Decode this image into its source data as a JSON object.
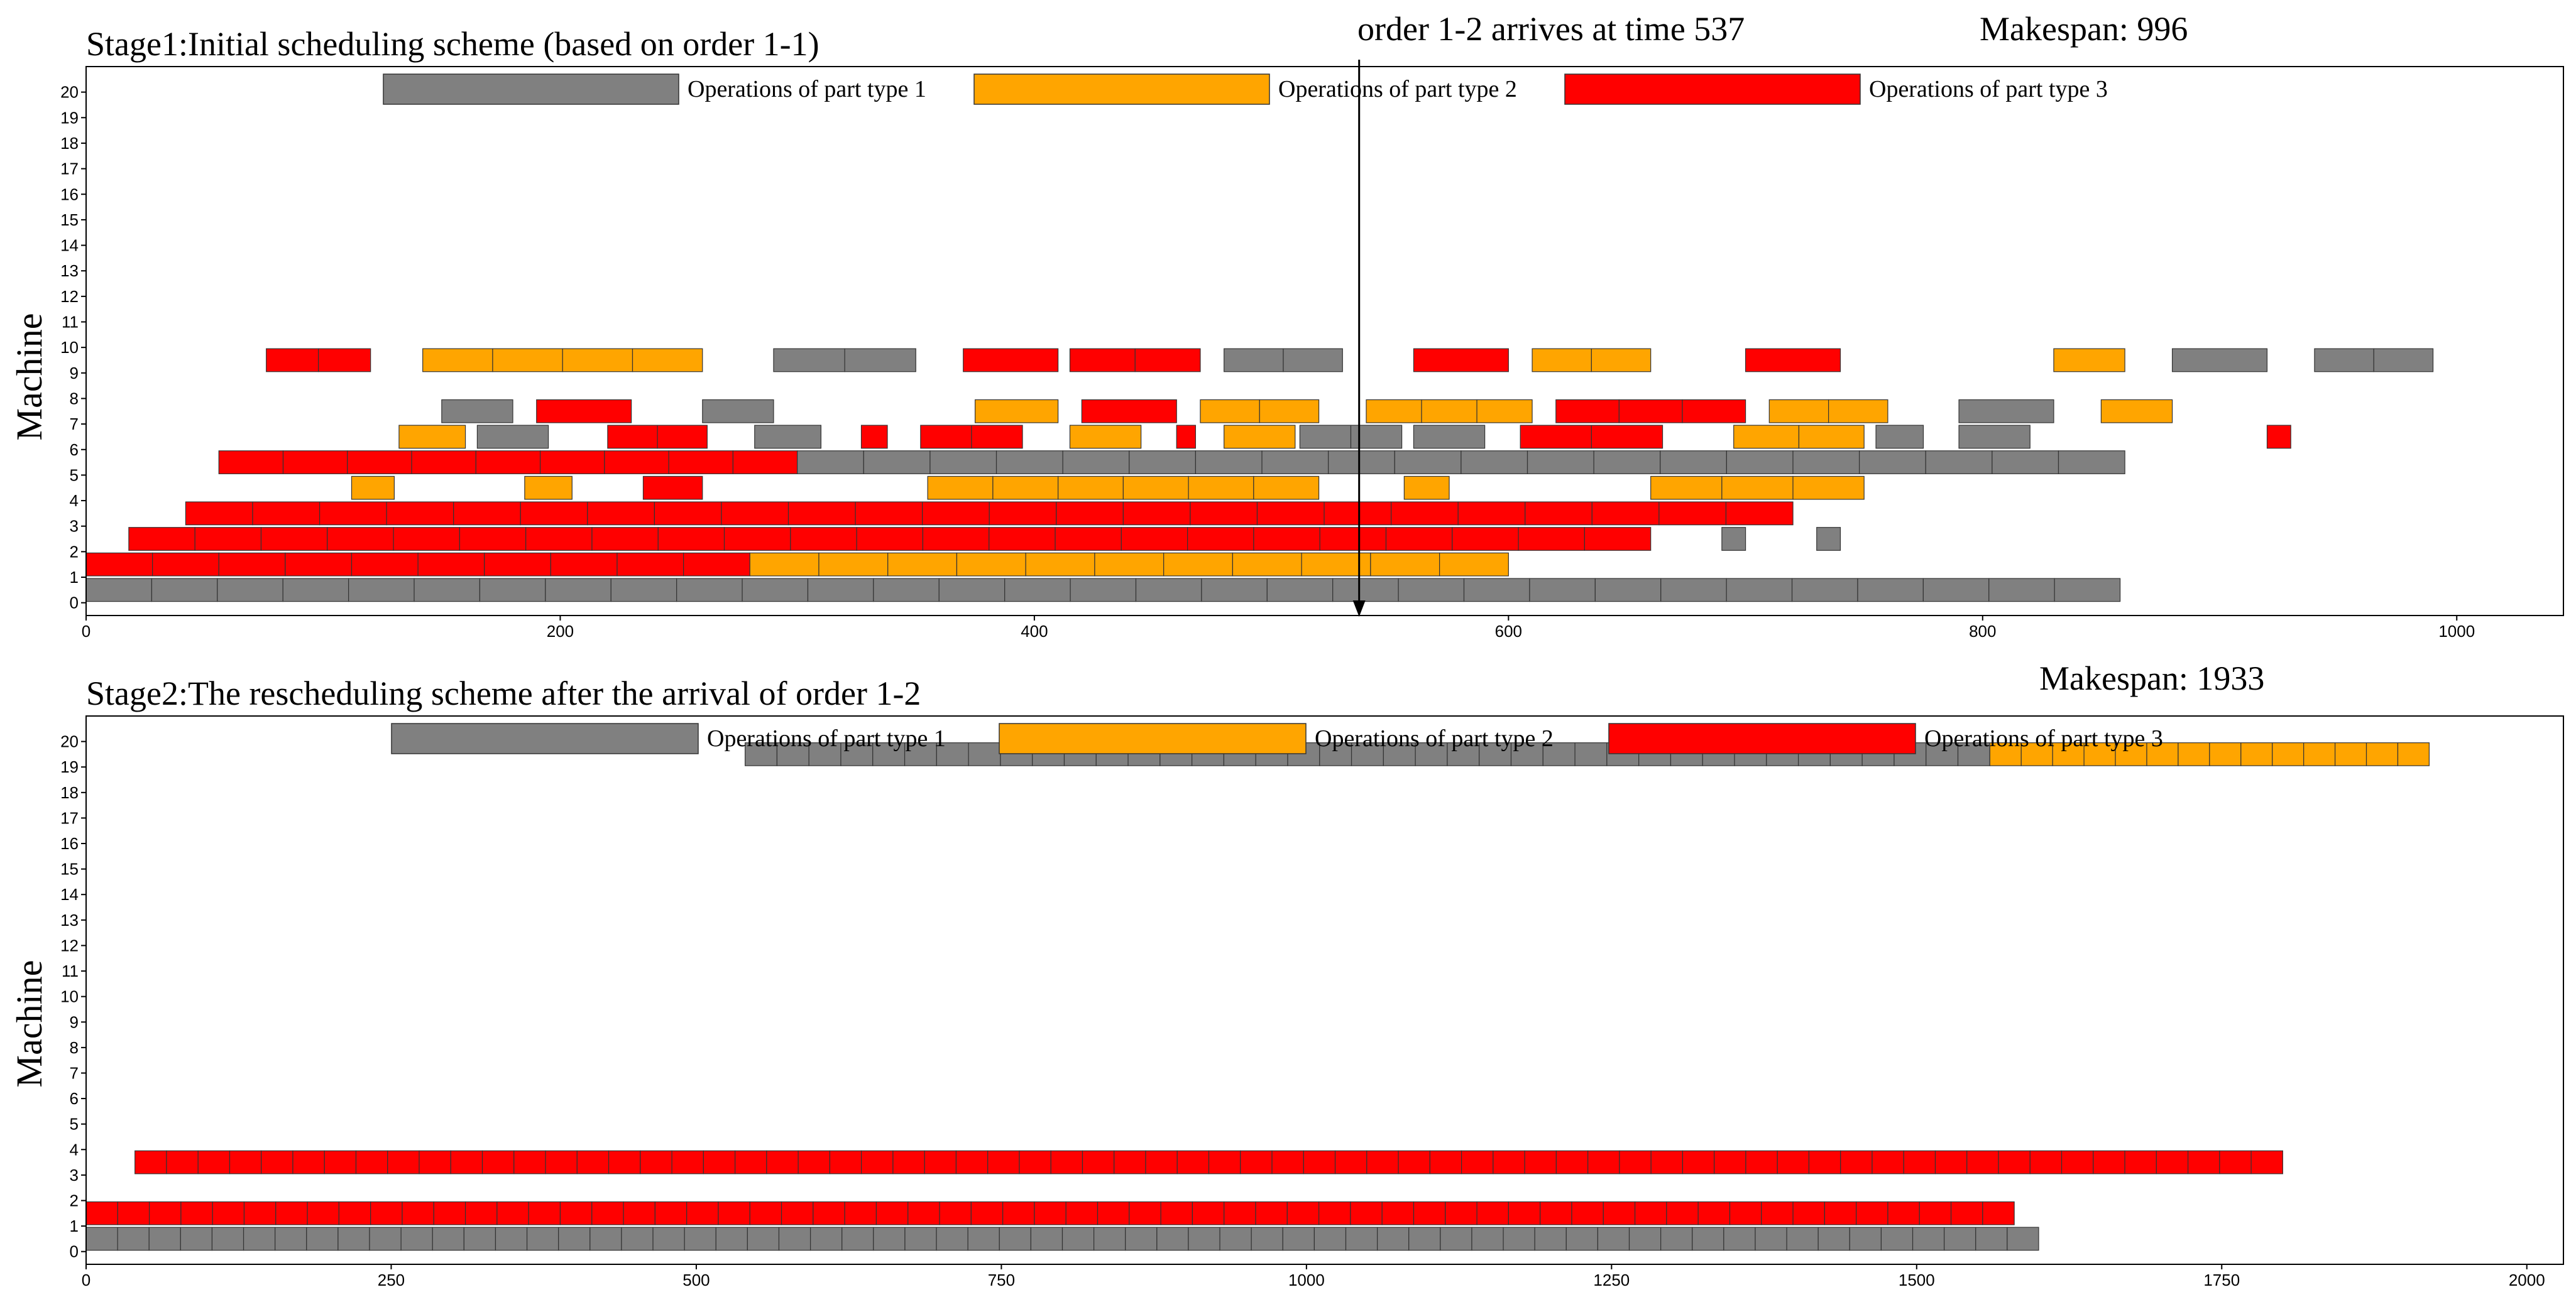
{
  "chart_data": [
    {
      "type": "gantt",
      "title": "Stage1:Initial scheduling scheme (based on order 1-1)",
      "makespan_label": "Makespan: 996",
      "annotation": "order 1-2 arrives at time 537",
      "arrival_time": 537,
      "ylabel": "Machine",
      "xlim": [
        0,
        1045
      ],
      "xticks": [
        0,
        200,
        400,
        600,
        800,
        1000
      ],
      "yticks": [
        0,
        1,
        2,
        3,
        4,
        5,
        6,
        7,
        8,
        9,
        10,
        11,
        12,
        13,
        14,
        15,
        16,
        17,
        18,
        19,
        20
      ],
      "legend": [
        "Operations of part type 1",
        "Operations of part type 2",
        "Operations of part type 3"
      ],
      "colors": {
        "1": "#808080",
        "2": "#FFA500",
        "3": "#FF0000"
      },
      "machines": [
        {
          "m": 1,
          "blocks": [
            [
              0,
              858,
              1
            ]
          ]
        },
        {
          "m": 2,
          "blocks": [
            [
              0,
              280,
              3
            ],
            [
              280,
              600,
              2
            ]
          ]
        },
        {
          "m": 3,
          "blocks": [
            [
              18,
              660,
              3
            ],
            [
              690,
              700,
              1
            ],
            [
              730,
              740,
              1
            ]
          ]
        },
        {
          "m": 4,
          "blocks": [
            [
              42,
              720,
              3
            ]
          ]
        },
        {
          "m": 5,
          "blocks": [
            [
              112,
              130,
              2
            ],
            [
              185,
              205,
              2
            ],
            [
              235,
              260,
              3
            ],
            [
              355,
              520,
              2
            ],
            [
              556,
              575,
              2
            ],
            [
              660,
              750,
              2
            ]
          ]
        },
        {
          "m": 6,
          "blocks": [
            [
              56,
              300,
              3
            ],
            [
              300,
              860,
              1
            ]
          ]
        },
        {
          "m": 7,
          "blocks": [
            [
              132,
              160,
              2
            ],
            [
              165,
              195,
              1
            ],
            [
              220,
              262,
              3
            ],
            [
              282,
              310,
              1
            ],
            [
              327,
              338,
              3
            ],
            [
              352,
              395,
              3
            ],
            [
              415,
              445,
              2
            ],
            [
              460,
              468,
              3
            ],
            [
              480,
              510,
              2
            ],
            [
              512,
              555,
              1
            ],
            [
              560,
              590,
              1
            ],
            [
              605,
              665,
              3
            ],
            [
              695,
              750,
              2
            ],
            [
              755,
              775,
              1
            ],
            [
              790,
              820,
              1
            ],
            [
              920,
              930,
              3
            ]
          ]
        },
        {
          "m": 8,
          "blocks": [
            [
              150,
              180,
              1
            ],
            [
              190,
              230,
              3
            ],
            [
              260,
              290,
              1
            ],
            [
              375,
              410,
              2
            ],
            [
              420,
              460,
              3
            ],
            [
              470,
              520,
              2
            ],
            [
              540,
              610,
              2
            ],
            [
              620,
              700,
              3
            ],
            [
              710,
              760,
              2
            ],
            [
              790,
              830,
              1
            ],
            [
              850,
              880,
              2
            ]
          ]
        },
        {
          "m": 10,
          "blocks": [
            [
              76,
              120,
              3
            ],
            [
              142,
              260,
              2
            ],
            [
              290,
              350,
              1
            ],
            [
              370,
              410,
              3
            ],
            [
              415,
              470,
              3
            ],
            [
              480,
              530,
              1
            ],
            [
              560,
              600,
              3
            ],
            [
              610,
              660,
              2
            ],
            [
              700,
              740,
              3
            ],
            [
              830,
              860,
              2
            ],
            [
              880,
              920,
              1
            ],
            [
              940,
              990,
              1
            ]
          ]
        }
      ]
    },
    {
      "type": "gantt",
      "title": "Stage2:The rescheduling scheme after the arrival of order 1-2",
      "makespan_label": "Makespan: 1933",
      "ylabel": "Machine",
      "xlim": [
        0,
        2030
      ],
      "xticks": [
        0,
        250,
        500,
        750,
        1000,
        1250,
        1500,
        1750,
        2000
      ],
      "yticks": [
        0,
        1,
        2,
        3,
        4,
        5,
        6,
        7,
        8,
        9,
        10,
        11,
        12,
        13,
        14,
        15,
        16,
        17,
        18,
        19,
        20
      ],
      "legend": [
        "Operations of part type 1",
        "Operations of part type 2",
        "Operations of part type 3"
      ],
      "colors": {
        "1": "#808080",
        "2": "#FFA500",
        "3": "#FF0000"
      },
      "machines": [
        {
          "m": 1,
          "blocks": [
            [
              0,
              1600,
              1
            ]
          ]
        },
        {
          "m": 2,
          "blocks": [
            [
              0,
              1580,
              3
            ]
          ]
        },
        {
          "m": 4,
          "blocks": [
            [
              40,
              1800,
              3
            ]
          ]
        },
        {
          "m": 20,
          "blocks": [
            [
              540,
              1560,
              1
            ],
            [
              1560,
              1920,
              2
            ]
          ]
        }
      ]
    }
  ]
}
